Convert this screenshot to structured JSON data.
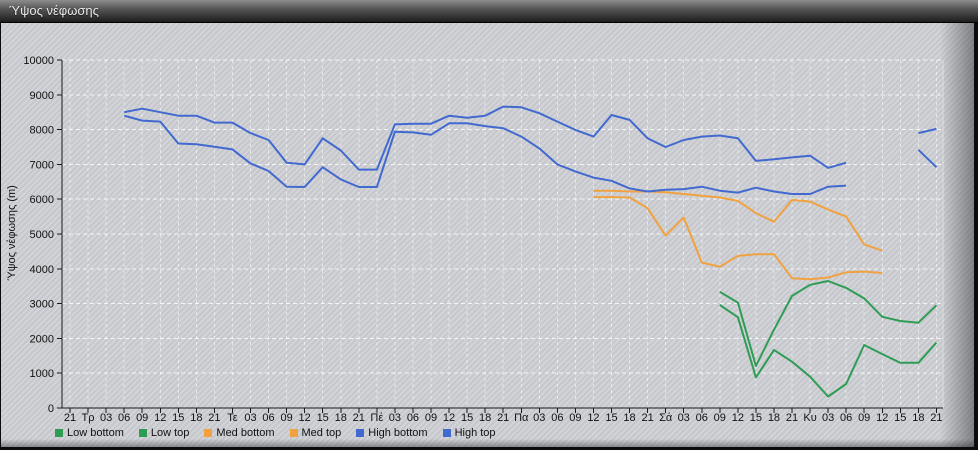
{
  "header": {
    "title": "Ύψος νέφωσης"
  },
  "colors": {
    "low": "#2f9c55",
    "med": "#f0a240",
    "high": "#4169cf",
    "grid": "#ffffff",
    "axis": "#1a1a1a",
    "text": "#111111",
    "titlebar_text": "#e9e9e9"
  },
  "chart_data": {
    "type": "line",
    "title": "Ύψος νέφωσης",
    "ylabel": "Ύψος νέφωσης (m)",
    "xlabel": "",
    "ylim": [
      0,
      10000
    ],
    "ytick_step": 1000,
    "ytick_labels": [
      "0",
      "1000",
      "2000",
      "3000",
      "4000",
      "5000",
      "6000",
      "7000",
      "8000",
      "9000",
      "10000"
    ],
    "grid": "white dashed, vertical line per 3h tick, horizontal per 1000 m",
    "legend_position": "bottom-left",
    "categories": [
      "21",
      "Τρ",
      "03",
      "06",
      "09",
      "12",
      "15",
      "18",
      "21",
      "Τε",
      "03",
      "06",
      "09",
      "12",
      "15",
      "18",
      "21",
      "Πέ",
      "03",
      "06",
      "09",
      "12",
      "15",
      "18",
      "21",
      "Πα",
      "03",
      "06",
      "09",
      "12",
      "15",
      "18",
      "21",
      "Σά",
      "03",
      "06",
      "09",
      "12",
      "15",
      "18",
      "21",
      "Κυ",
      "03",
      "06",
      "09",
      "12",
      "15",
      "18",
      "21"
    ],
    "series": [
      {
        "name": "Low bottom",
        "color": "#2f9c55",
        "segments": [
          {
            "start": 36,
            "values": [
              2960,
              2610,
              880,
              1670,
              1330,
              900,
              330,
              690,
              1810,
              1550,
              1300,
              1300,
              1880
            ]
          }
        ]
      },
      {
        "name": "Low top",
        "color": "#2f9c55",
        "segments": [
          {
            "start": 36,
            "values": [
              3340,
              3030,
              1210,
              2250,
              3220,
              3540,
              3650,
              3450,
              3150,
              2620,
              2500,
              2450,
              2950
            ]
          }
        ]
      },
      {
        "name": "Med bottom",
        "color": "#f0a240",
        "segments": [
          {
            "start": 29,
            "values": [
              6060,
              6060,
              6050,
              5740,
              4950,
              5470,
              4180,
              4060,
              4370,
              4420,
              4420,
              3730,
              3700,
              3750,
              3900,
              3920,
              3880
            ]
          }
        ]
      },
      {
        "name": "Med top",
        "color": "#f0a240",
        "segments": [
          {
            "start": 29,
            "values": [
              6240,
              6240,
              6220,
              6220,
              6200,
              6150,
              6100,
              6050,
              5950,
              5600,
              5350,
              5980,
              5930,
              5700,
              5500,
              4700,
              4520
            ]
          }
        ]
      },
      {
        "name": "High bottom",
        "color": "#4169cf",
        "segments": [
          {
            "start": 3,
            "values": [
              8400,
              8260,
              8230,
              7600,
              7580,
              7510,
              7430,
              7030,
              6810,
              6360,
              6350,
              6920,
              6570,
              6350,
              6350,
              7940,
              7920,
              7850,
              8180,
              8180,
              8100,
              8040,
              7800,
              7460,
              7000,
              6800,
              6620,
              6530,
              6310,
              6220,
              6270,
              6290,
              6360,
              6245,
              6190,
              6330,
              6220,
              6150,
              6150,
              6360,
              6390
            ]
          },
          {
            "start": 47,
            "values": [
              7420,
              6920
            ]
          }
        ]
      },
      {
        "name": "High top",
        "color": "#4169cf",
        "segments": [
          {
            "start": 3,
            "values": [
              8500,
              8600,
              8500,
              8400,
              8400,
              8200,
              8200,
              7900,
              7700,
              7050,
              7000,
              7750,
              7400,
              6850,
              6850,
              8150,
              8170,
              8170,
              8400,
              8340,
              8400,
              8660,
              8640,
              8470,
              8230,
              7990,
              7800,
              8420,
              8280,
              7750,
              7500,
              7700,
              7800,
              7830,
              7750,
              7100,
              7150,
              7200,
              7250,
              6900,
              7050
            ]
          },
          {
            "start": 47,
            "values": [
              7900,
              8020
            ]
          }
        ]
      }
    ]
  }
}
